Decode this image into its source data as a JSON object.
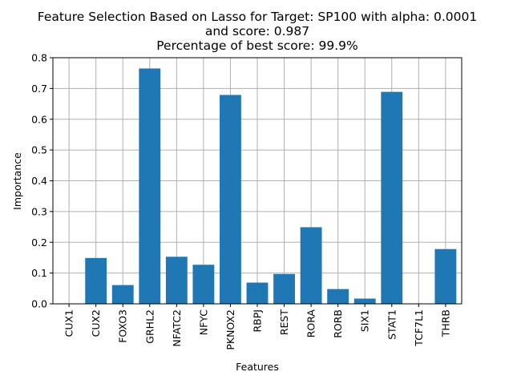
{
  "chart_data": {
    "type": "bar",
    "title_lines": [
      "Feature Selection Based on Lasso for Target: SP100 with alpha: 0.0001",
      "and score: 0.987",
      "Percentage of best score: 99.9%"
    ],
    "xlabel": "Features",
    "ylabel": "Importance",
    "categories": [
      "CUX1",
      "CUX2",
      "FOXO3",
      "GRHL2",
      "NFATC2",
      "NFYC",
      "PKNOX2",
      "RBPJ",
      "REST",
      "RORA",
      "RORB",
      "SIX1",
      "STAT1",
      "TCF7L1",
      "THRB"
    ],
    "values": [
      0.0,
      0.149,
      0.061,
      0.765,
      0.153,
      0.127,
      0.679,
      0.069,
      0.097,
      0.249,
      0.048,
      0.017,
      0.689,
      0.0,
      0.178
    ],
    "ylim": [
      0,
      0.8
    ],
    "yticks": [
      0.0,
      0.1,
      0.2,
      0.3,
      0.4,
      0.5,
      0.6,
      0.7,
      0.8
    ],
    "ytick_labels": [
      "0.0",
      "0.1",
      "0.2",
      "0.3",
      "0.4",
      "0.5",
      "0.6",
      "0.7",
      "0.8"
    ],
    "grid": true,
    "bar_color": "#1f77b4",
    "grid_color": "#b0b0b0"
  }
}
